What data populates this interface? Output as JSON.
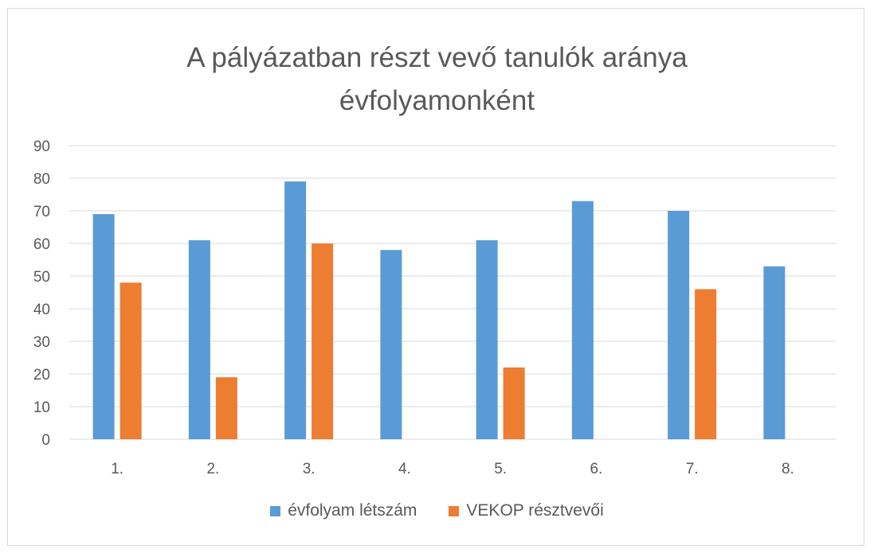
{
  "chart_data": {
    "type": "bar",
    "title_lines": [
      "A pályázatban részt vevő tanulók aránya",
      "évfolyamonként"
    ],
    "categories": [
      "1.",
      "2.",
      "3.",
      "4.",
      "5.",
      "6.",
      "7.",
      "8."
    ],
    "series": [
      {
        "name": "évfolyam létszám",
        "color": "#5b9bd5",
        "values": [
          69,
          61,
          79,
          58,
          61,
          73,
          70,
          53
        ]
      },
      {
        "name": "VEKOP résztvevői",
        "color": "#ed7d31",
        "values": [
          48,
          19,
          60,
          0,
          22,
          0,
          46,
          0
        ]
      }
    ],
    "ylim": [
      0,
      90
    ],
    "yticks": [
      0,
      10,
      20,
      30,
      40,
      50,
      60,
      70,
      80,
      90
    ],
    "grid": true,
    "legend_position": "bottom"
  }
}
